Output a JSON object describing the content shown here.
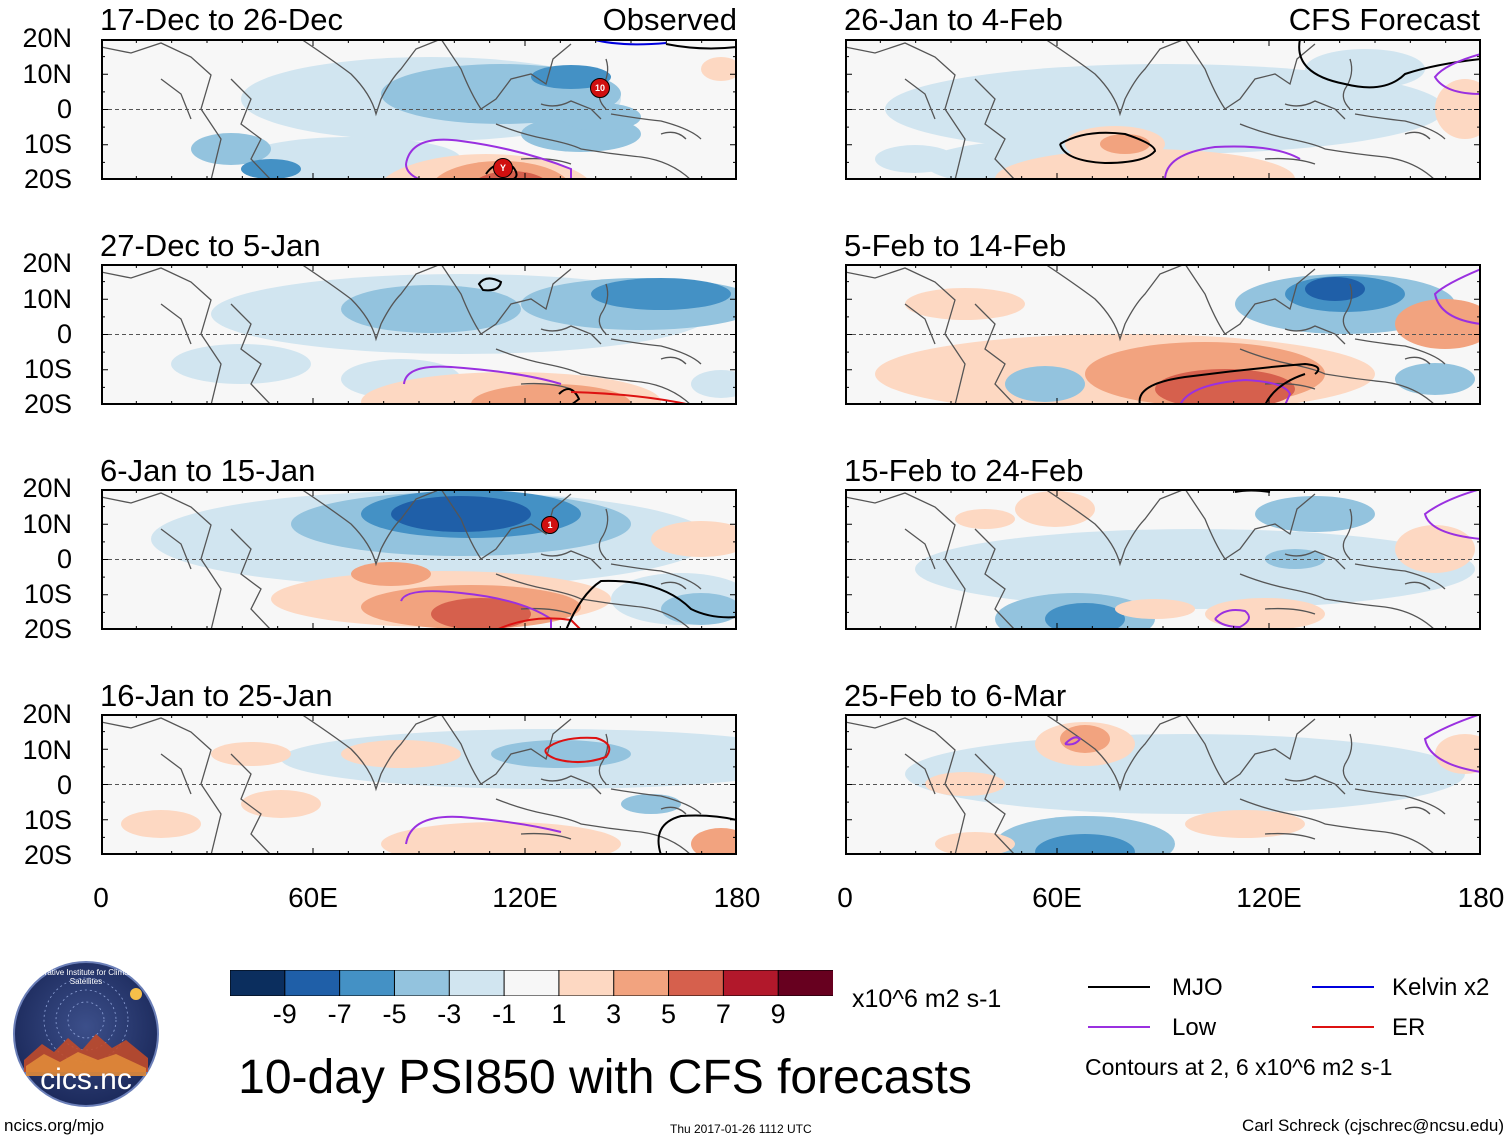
{
  "observed_label": "Observed",
  "forecast_label": "CFS Forecast",
  "panels": [
    {
      "title": "17-Dec to 26-Dec"
    },
    {
      "title": "27-Dec to 5-Jan"
    },
    {
      "title": "6-Jan to 15-Jan"
    },
    {
      "title": "16-Jan to 25-Jan"
    },
    {
      "title": "26-Jan to 4-Feb"
    },
    {
      "title": "5-Feb to 14-Feb"
    },
    {
      "title": "15-Feb to 24-Feb"
    },
    {
      "title": "25-Feb to 6-Mar"
    }
  ],
  "lat_labels": [
    "20N",
    "10N",
    "0",
    "10S",
    "20S"
  ],
  "lon_labels": [
    "0",
    "60E",
    "120E",
    "180"
  ],
  "colorbar": {
    "colors": [
      "#0b2e5e",
      "#1f5fa8",
      "#4491c5",
      "#93c3de",
      "#d1e5f0",
      "#f7f7f7",
      "#fdd8c2",
      "#f2a37f",
      "#d6604d",
      "#b2182b",
      "#67001f"
    ],
    "labels": [
      "-9",
      "-7",
      "-5",
      "-3",
      "-1",
      "1",
      "3",
      "5",
      "7",
      "9"
    ],
    "units": "x10^6 m2 s-1"
  },
  "main_title": "10-day PSI850 with CFS forecasts",
  "legend": {
    "items": [
      {
        "label": "MJO",
        "color": "#000000"
      },
      {
        "label": "Kelvin x2",
        "color": "#0000dd"
      },
      {
        "label": "Low",
        "color": "#9a30e0"
      },
      {
        "label": "ER",
        "color": "#dd1111"
      }
    ],
    "note": "Contours at 2, 6 x10^6 m2 s-1"
  },
  "logo_text": "cics.nc",
  "logo_ring_text": "Cooperative Institute for Climate and Satellites",
  "tc_markers": [
    "10",
    "Y",
    "1"
  ],
  "footer": {
    "left": "ncics.org/mjo",
    "center": "Thu 2017-01-26 1112 UTC",
    "right": "Carl Schreck (cjschrec@ncsu.edu)"
  }
}
